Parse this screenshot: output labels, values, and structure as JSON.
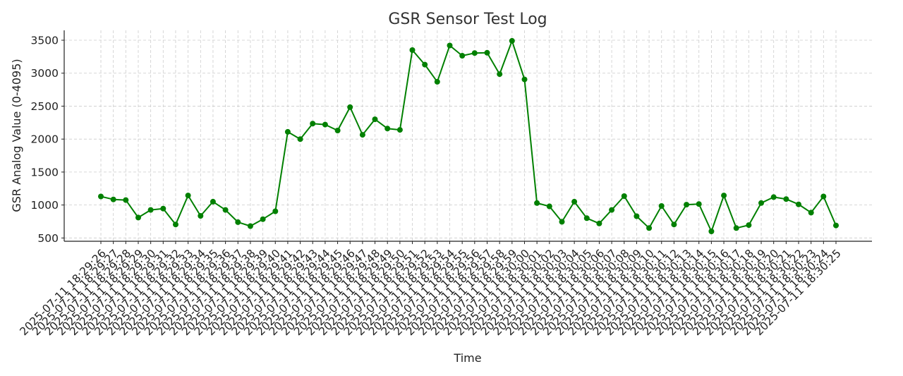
{
  "chart_data": {
    "type": "line",
    "title": "GSR Sensor Test Log",
    "xlabel": "Time",
    "ylabel": "GSR Analog Value (0-4095)",
    "ylim": [
      450,
      3650
    ],
    "yticks": [
      500,
      1000,
      1500,
      2000,
      2500,
      3000,
      3500
    ],
    "grid": true,
    "color": "#008000",
    "x": [
      "2025-07-11 18:29:26",
      "2025-07-11 18:29:27",
      "2025-07-11 18:29:28",
      "2025-07-11 18:29:29",
      "2025-07-11 18:29:30",
      "2025-07-11 18:29:31",
      "2025-07-11 18:29:32",
      "2025-07-11 18:29:33",
      "2025-07-11 18:29:34",
      "2025-07-11 18:29:35",
      "2025-07-11 18:29:36",
      "2025-07-11 18:29:37",
      "2025-07-11 18:29:38",
      "2025-07-11 18:29:39",
      "2025-07-11 18:29:40",
      "2025-07-11 18:29:41",
      "2025-07-11 18:29:42",
      "2025-07-11 18:29:43",
      "2025-07-11 18:29:44",
      "2025-07-11 18:29:45",
      "2025-07-11 18:29:46",
      "2025-07-11 18:29:47",
      "2025-07-11 18:29:48",
      "2025-07-11 18:29:49",
      "2025-07-11 18:29:50",
      "2025-07-11 18:29:51",
      "2025-07-11 18:29:52",
      "2025-07-11 18:29:53",
      "2025-07-11 18:29:54",
      "2025-07-11 18:29:55",
      "2025-07-11 18:29:56",
      "2025-07-11 18:29:57",
      "2025-07-11 18:29:58",
      "2025-07-11 18:29:59",
      "2025-07-11 18:30:00",
      "2025-07-11 18:30:01",
      "2025-07-11 18:30:02",
      "2025-07-11 18:30:03",
      "2025-07-11 18:30:04",
      "2025-07-11 18:30:05",
      "2025-07-11 18:30:06",
      "2025-07-11 18:30:07",
      "2025-07-11 18:30:08",
      "2025-07-11 18:30:09",
      "2025-07-11 18:30:10",
      "2025-07-11 18:30:11",
      "2025-07-11 18:30:12",
      "2025-07-11 18:30:13",
      "2025-07-11 18:30:14",
      "2025-07-11 18:30:15",
      "2025-07-11 18:30:16",
      "2025-07-11 18:30:17",
      "2025-07-11 18:30:18",
      "2025-07-11 18:30:19",
      "2025-07-11 18:30:20",
      "2025-07-11 18:30:21",
      "2025-07-11 18:30:22",
      "2025-07-11 18:30:23",
      "2025-07-11 18:30:24",
      "2025-07-11 18:30:25"
    ],
    "series": [
      {
        "values": [
          1130,
          1085,
          1075,
          810,
          925,
          945,
          705,
          1145,
          835,
          1050,
          925,
          740,
          680,
          785,
          905,
          2110,
          2000,
          2235,
          2220,
          2130,
          2485,
          2065,
          2300,
          2160,
          2140,
          3350,
          3130,
          2870,
          3420,
          3265,
          3305,
          3310,
          2985,
          3490,
          2905,
          1030,
          980,
          745,
          1050,
          800,
          720,
          925,
          1135,
          830,
          650,
          985,
          705,
          1005,
          1015,
          600,
          1145,
          650,
          695,
          1030,
          1120,
          1090,
          1010,
          885,
          1130,
          690
        ]
      }
    ]
  }
}
